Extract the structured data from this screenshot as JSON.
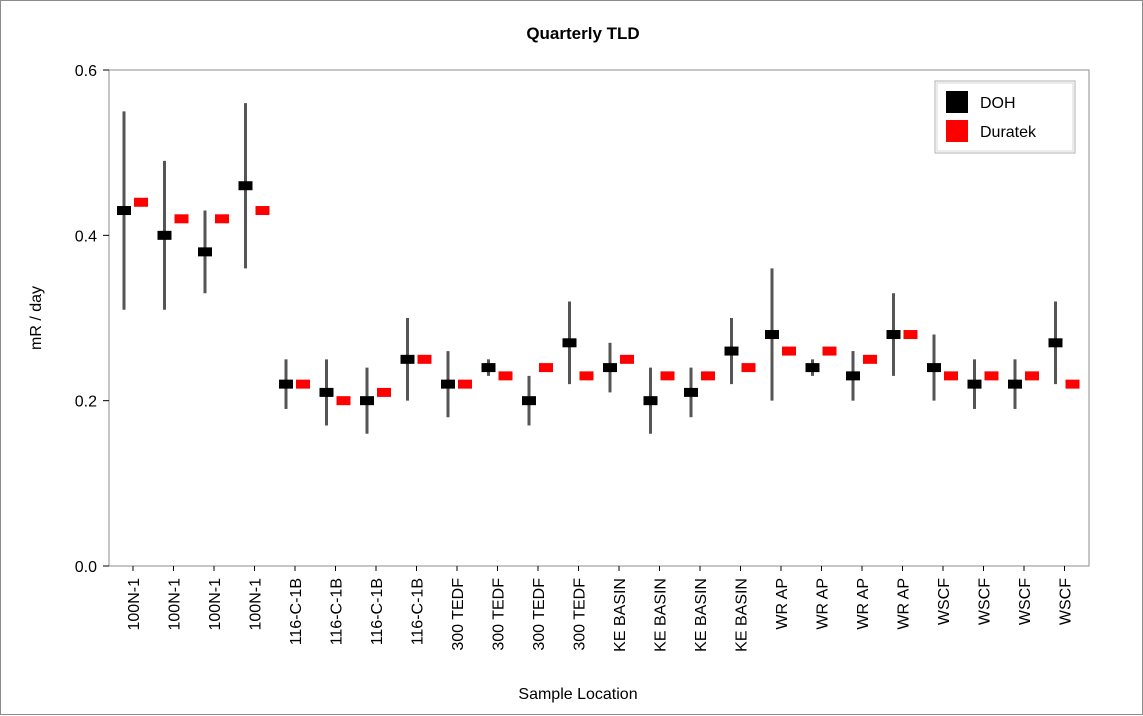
{
  "chart_data": {
    "type": "scatter",
    "title": "Quarterly TLD",
    "xlabel": "Sample Location",
    "ylabel": "mR / day",
    "ylim": [
      0,
      0.6
    ],
    "yticks": [
      "0.0",
      "0.2",
      "0.4",
      "0.6"
    ],
    "grid": false,
    "legend_position": "top-right",
    "categories": [
      "100N-1",
      "100N-1",
      "100N-1",
      "100N-1",
      "116-C-1B",
      "116-C-1B",
      "116-C-1B",
      "116-C-1B",
      "300 TEDF",
      "300 TEDF",
      "300 TEDF",
      "300 TEDF",
      "KE BASIN",
      "KE BASIN",
      "KE BASIN",
      "KE BASIN",
      "WR AP",
      "WR AP",
      "WR AP",
      "WR AP",
      "WSCF",
      "WSCF",
      "WSCF",
      "WSCF"
    ],
    "series": [
      {
        "name": "DOH",
        "color": "#000000",
        "values": [
          0.43,
          0.4,
          0.38,
          0.46,
          0.22,
          0.21,
          0.2,
          0.25,
          0.22,
          0.24,
          0.2,
          0.27,
          0.24,
          0.2,
          0.21,
          0.26,
          0.28,
          0.24,
          0.23,
          0.28,
          0.24,
          0.22,
          0.22,
          0.27
        ],
        "error_low": [
          0.31,
          0.31,
          0.33,
          0.36,
          0.19,
          0.17,
          0.16,
          0.2,
          0.18,
          0.23,
          0.17,
          0.22,
          0.21,
          0.16,
          0.18,
          0.22,
          0.2,
          0.23,
          0.2,
          0.23,
          0.2,
          0.19,
          0.19,
          0.22
        ],
        "error_high": [
          0.55,
          0.49,
          0.43,
          0.56,
          0.25,
          0.25,
          0.24,
          0.3,
          0.26,
          0.25,
          0.23,
          0.32,
          0.27,
          0.24,
          0.24,
          0.3,
          0.36,
          0.25,
          0.26,
          0.33,
          0.28,
          0.25,
          0.25,
          0.32
        ]
      },
      {
        "name": "Duratek",
        "color": "#ff0000",
        "values": [
          0.44,
          0.42,
          0.42,
          0.43,
          0.22,
          0.2,
          0.21,
          0.25,
          0.22,
          0.23,
          0.24,
          0.23,
          0.25,
          0.23,
          0.23,
          0.24,
          0.26,
          0.26,
          0.25,
          0.28,
          0.23,
          0.23,
          0.23,
          0.22
        ]
      }
    ],
    "errorbar_color": "#555555"
  }
}
